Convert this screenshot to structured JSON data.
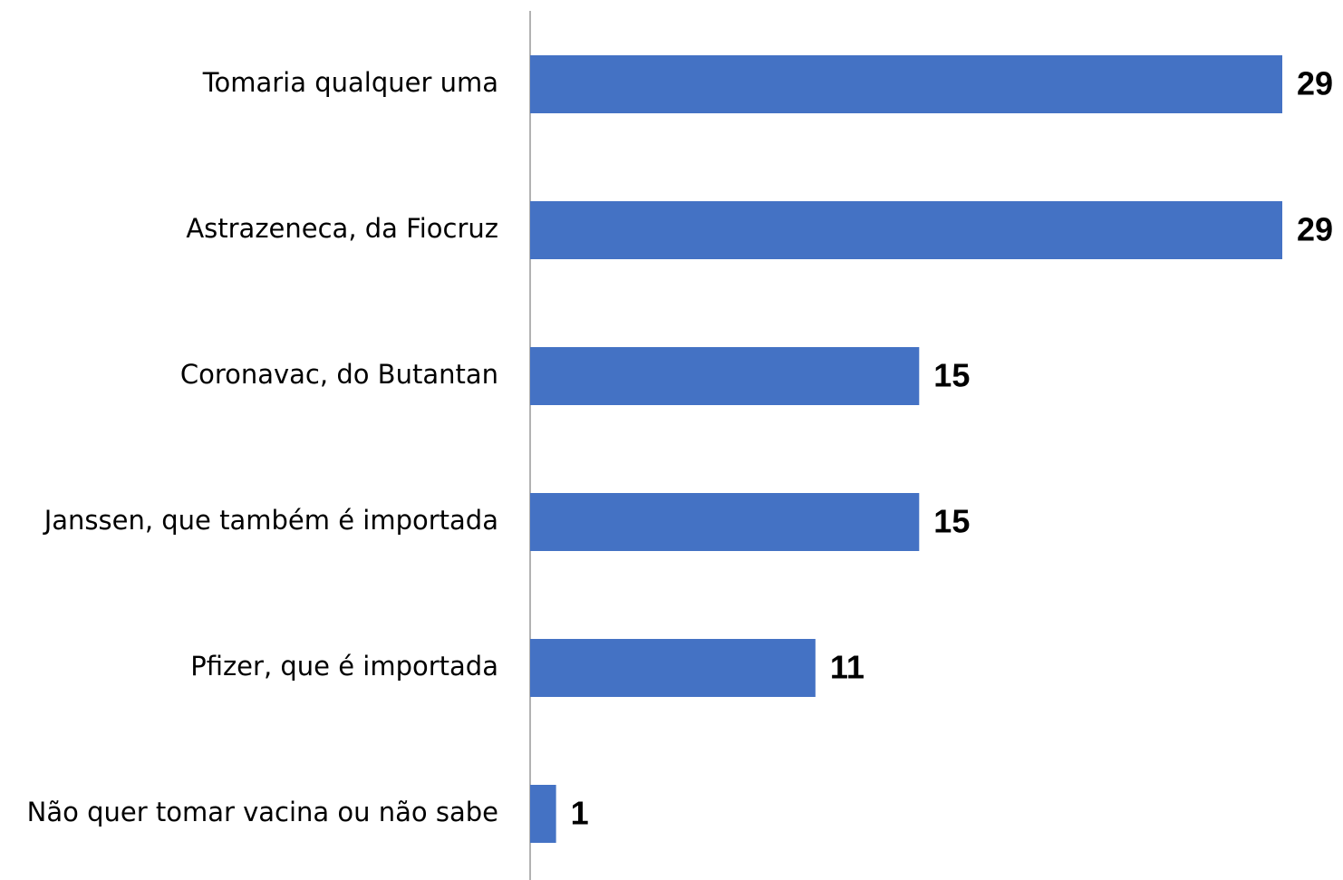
{
  "chart_data": {
    "type": "bar",
    "orientation": "horizontal",
    "categories": [
      "Tomaria qualquer uma",
      "Astrazeneca, da Fiocruz",
      "Coronavac, do Butantan",
      "Janssen, que também é importada",
      "Pfizer, que é importada",
      "Não quer tomar vacina ou não sabe"
    ],
    "values": [
      29,
      29,
      15,
      15,
      11,
      1
    ],
    "color": "#4472c4",
    "xlim": [
      0,
      29
    ]
  }
}
